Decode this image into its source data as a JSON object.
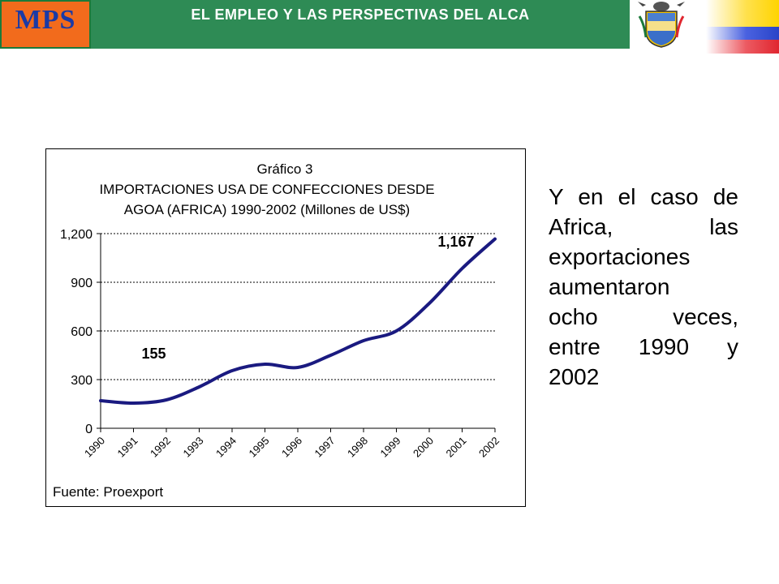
{
  "header": {
    "logo_text": "MPS",
    "title": "EL EMPLEO Y LAS PERSPECTIVAS DEL ALCA",
    "crest_icon": "colombia-coat-of-arms-icon",
    "flag_icon": "colombia-flag-icon",
    "colors": {
      "logo_bg": "#f26b1c",
      "logo_text": "#1a3aa6",
      "bar_bg": "#2e8b55",
      "flag_yellow": "#ffe14d",
      "flag_blue": "#2a44c8",
      "flag_red": "#e0262f"
    }
  },
  "chart_data": {
    "type": "line",
    "title_lines": [
      "Gráfico 3",
      "IMPORTACIONES USA DE CONFECCIONES DESDE",
      "AGOA (AFRICA) 1990-2002 (Millones de US$)"
    ],
    "x": [
      "1990",
      "1991",
      "1992",
      "1993",
      "1994",
      "1995",
      "1996",
      "1997",
      "1998",
      "1999",
      "2000",
      "2001",
      "2002"
    ],
    "series": [
      {
        "values": [
          170,
          155,
          175,
          255,
          355,
          395,
          375,
          450,
          540,
          600,
          770,
          985,
          1167
        ],
        "color": "#1a1a80"
      }
    ],
    "yticks": [
      "0",
      "300",
      "600",
      "900",
      "1,200"
    ],
    "ylim": [
      0,
      1200
    ],
    "annotations": [
      {
        "text": "155",
        "x": "1991",
        "y": 430
      },
      {
        "text": "1,167",
        "x": "2001",
        "y": 1120
      }
    ],
    "gridlines": "horizontal dashed",
    "source": "Fuente: Proexport"
  },
  "side_text": {
    "lines": [
      "Y en el caso de",
      "Africa, las",
      "exportaciones",
      "aumentaron",
      "ocho veces,",
      "entre 1990 y",
      "2002"
    ]
  }
}
